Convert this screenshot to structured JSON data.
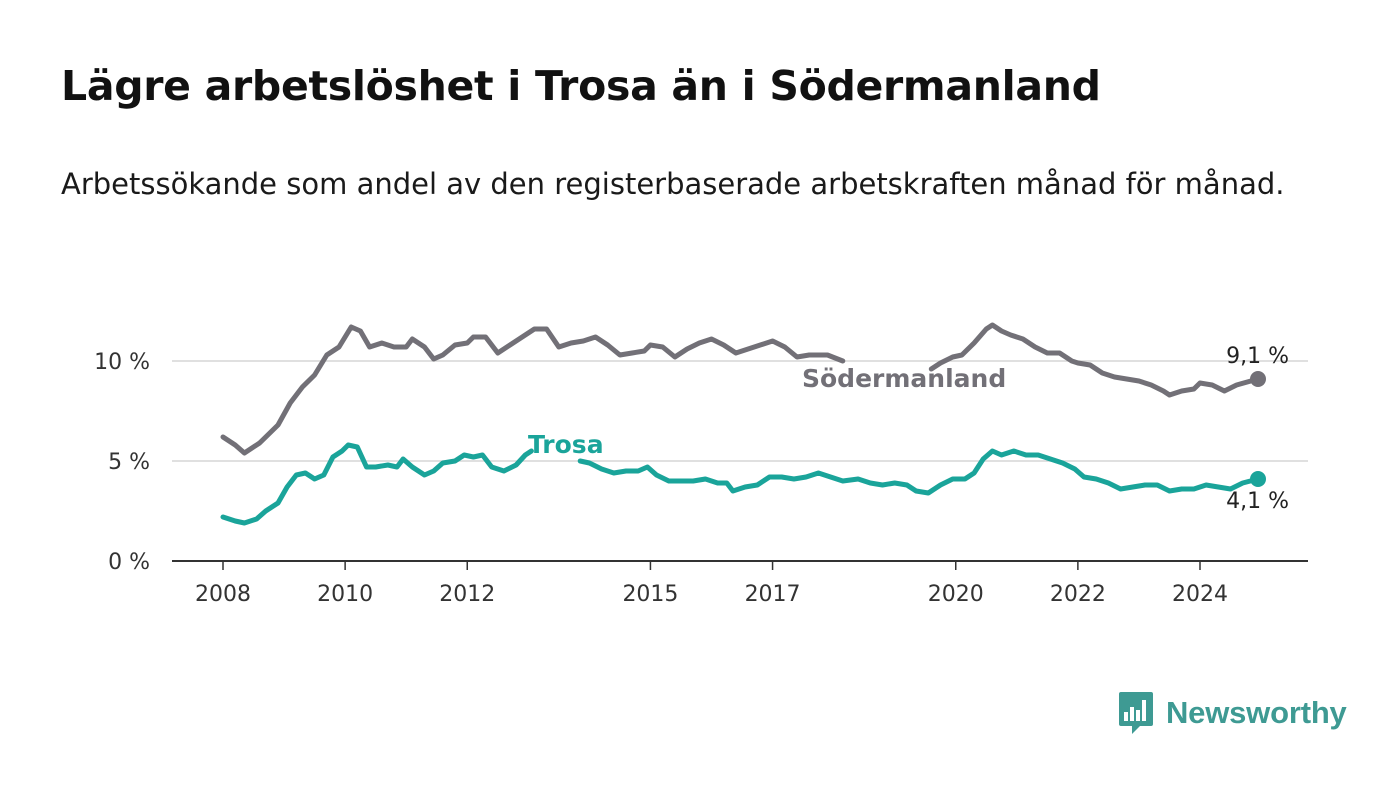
{
  "header": {
    "title": "Lägre arbetslöshet i Trosa än i Södermanland",
    "subtitle": "Arbetssökande som andel av den registerbaserade arbetskraften månad för månad."
  },
  "brand": {
    "name": "Newsworthy",
    "icon": "bar-chart-speech-bubble-icon",
    "color": "#3e9a93"
  },
  "chart_data": {
    "type": "line",
    "title": "Lägre arbetslöshet i Trosa än i Södermanland",
    "subtitle": "Arbetssökande som andel av den registerbaserade arbetskraften månad för månad.",
    "xlabel": "",
    "ylabel": "",
    "xlim": [
      2007.6,
      2025.5
    ],
    "ylim": [
      0,
      12
    ],
    "xticks": [
      2008,
      2010,
      2012,
      2015,
      2017,
      2020,
      2022,
      2024
    ],
    "xtick_labels": [
      "2008",
      "2010",
      "2012",
      "2015",
      "2017",
      "2020",
      "2022",
      "2024"
    ],
    "yticks": [
      0,
      5,
      10
    ],
    "ytick_labels": [
      "0 %",
      "5 %",
      "10 %"
    ],
    "grid": "horizontal",
    "legend": "none",
    "series": [
      {
        "name": "Södermanland",
        "color": "#727077",
        "end_label": "9,1 %",
        "points": [
          [
            2008.0,
            6.2
          ],
          [
            2008.2,
            5.8
          ],
          [
            2008.35,
            5.4
          ],
          [
            2008.6,
            5.9
          ],
          [
            2008.9,
            6.8
          ],
          [
            2009.1,
            7.9
          ],
          [
            2009.3,
            8.7
          ],
          [
            2009.5,
            9.3
          ],
          [
            2009.7,
            10.3
          ],
          [
            2009.9,
            10.7
          ],
          [
            2010.0,
            11.2
          ],
          [
            2010.1,
            11.7
          ],
          [
            2010.25,
            11.5
          ],
          [
            2010.4,
            10.7
          ],
          [
            2010.6,
            10.9
          ],
          [
            2010.8,
            10.7
          ],
          [
            2011.0,
            10.7
          ],
          [
            2011.1,
            11.1
          ],
          [
            2011.3,
            10.7
          ],
          [
            2011.45,
            10.1
          ],
          [
            2011.6,
            10.3
          ],
          [
            2011.8,
            10.8
          ],
          [
            2012.0,
            10.9
          ],
          [
            2012.1,
            11.2
          ],
          [
            2012.3,
            11.2
          ],
          [
            2012.5,
            10.4
          ],
          [
            2012.7,
            10.8
          ],
          [
            2012.9,
            11.2
          ],
          [
            2013.1,
            11.6
          ],
          [
            2013.3,
            11.6
          ],
          [
            2013.5,
            10.7
          ],
          [
            2013.7,
            10.9
          ],
          [
            2013.9,
            11.0
          ],
          [
            2014.1,
            11.2
          ],
          [
            2014.3,
            10.8
          ],
          [
            2014.5,
            10.3
          ],
          [
            2014.7,
            10.4
          ],
          [
            2014.9,
            10.5
          ],
          [
            2015.0,
            10.8
          ],
          [
            2015.2,
            10.7
          ],
          [
            2015.4,
            10.2
          ],
          [
            2015.6,
            10.6
          ],
          [
            2015.8,
            10.9
          ],
          [
            2016.0,
            11.1
          ],
          [
            2016.2,
            10.8
          ],
          [
            2016.4,
            10.4
          ],
          [
            2016.6,
            10.6
          ],
          [
            2016.8,
            10.8
          ],
          [
            2017.0,
            11.0
          ],
          [
            2017.2,
            10.7
          ],
          [
            2017.4,
            10.2
          ],
          [
            2017.6,
            10.3
          ],
          [
            2017.9,
            10.3
          ],
          [
            2018.15,
            10.0
          ]
        ],
        "points_segment2": [
          [
            2019.6,
            9.6
          ],
          [
            2019.75,
            9.9
          ],
          [
            2019.95,
            10.2
          ],
          [
            2020.1,
            10.3
          ],
          [
            2020.3,
            10.9
          ],
          [
            2020.5,
            11.6
          ],
          [
            2020.6,
            11.8
          ],
          [
            2020.75,
            11.5
          ],
          [
            2020.9,
            11.3
          ],
          [
            2021.1,
            11.1
          ],
          [
            2021.3,
            10.7
          ],
          [
            2021.5,
            10.4
          ],
          [
            2021.7,
            10.4
          ],
          [
            2021.9,
            10.0
          ],
          [
            2022.0,
            9.9
          ],
          [
            2022.2,
            9.8
          ],
          [
            2022.4,
            9.4
          ],
          [
            2022.6,
            9.2
          ],
          [
            2022.8,
            9.1
          ],
          [
            2023.0,
            9.0
          ],
          [
            2023.2,
            8.8
          ],
          [
            2023.4,
            8.5
          ],
          [
            2023.5,
            8.3
          ],
          [
            2023.7,
            8.5
          ],
          [
            2023.9,
            8.6
          ],
          [
            2024.0,
            8.9
          ],
          [
            2024.2,
            8.8
          ],
          [
            2024.4,
            8.5
          ],
          [
            2024.6,
            8.8
          ],
          [
            2024.95,
            9.1
          ]
        ]
      },
      {
        "name": "Trosa",
        "color": "#1aa49a",
        "end_label": "4,1 %",
        "points": [
          [
            2008.0,
            2.2
          ],
          [
            2008.2,
            2.0
          ],
          [
            2008.35,
            1.9
          ],
          [
            2008.55,
            2.1
          ],
          [
            2008.7,
            2.5
          ],
          [
            2008.9,
            2.9
          ],
          [
            2009.05,
            3.7
          ],
          [
            2009.2,
            4.3
          ],
          [
            2009.35,
            4.4
          ],
          [
            2009.5,
            4.1
          ],
          [
            2009.65,
            4.3
          ],
          [
            2009.8,
            5.2
          ],
          [
            2009.95,
            5.5
          ],
          [
            2010.05,
            5.8
          ],
          [
            2010.2,
            5.7
          ],
          [
            2010.35,
            4.7
          ],
          [
            2010.5,
            4.7
          ],
          [
            2010.7,
            4.8
          ],
          [
            2010.85,
            4.7
          ],
          [
            2010.95,
            5.1
          ],
          [
            2011.1,
            4.7
          ],
          [
            2011.3,
            4.3
          ],
          [
            2011.45,
            4.5
          ],
          [
            2011.6,
            4.9
          ],
          [
            2011.8,
            5.0
          ],
          [
            2011.95,
            5.3
          ],
          [
            2012.1,
            5.2
          ],
          [
            2012.25,
            5.3
          ],
          [
            2012.4,
            4.7
          ],
          [
            2012.6,
            4.5
          ],
          [
            2012.8,
            4.8
          ],
          [
            2012.95,
            5.3
          ],
          [
            2013.05,
            5.5
          ]
        ],
        "points_segment2": [
          [
            2013.85,
            5.0
          ],
          [
            2014.0,
            4.9
          ],
          [
            2014.2,
            4.6
          ],
          [
            2014.4,
            4.4
          ],
          [
            2014.6,
            4.5
          ],
          [
            2014.8,
            4.5
          ],
          [
            2014.95,
            4.7
          ],
          [
            2015.1,
            4.3
          ],
          [
            2015.3,
            4.0
          ],
          [
            2015.5,
            4.0
          ],
          [
            2015.7,
            4.0
          ],
          [
            2015.9,
            4.1
          ],
          [
            2016.1,
            3.9
          ],
          [
            2016.25,
            3.9
          ],
          [
            2016.35,
            3.5
          ],
          [
            2016.55,
            3.7
          ],
          [
            2016.75,
            3.8
          ],
          [
            2016.95,
            4.2
          ],
          [
            2017.15,
            4.2
          ],
          [
            2017.35,
            4.1
          ],
          [
            2017.55,
            4.2
          ],
          [
            2017.75,
            4.4
          ],
          [
            2017.95,
            4.2
          ],
          [
            2018.15,
            4.0
          ],
          [
            2018.4,
            4.1
          ],
          [
            2018.6,
            3.9
          ],
          [
            2018.8,
            3.8
          ],
          [
            2019.0,
            3.9
          ],
          [
            2019.2,
            3.8
          ],
          [
            2019.35,
            3.5
          ],
          [
            2019.55,
            3.4
          ],
          [
            2019.75,
            3.8
          ],
          [
            2019.95,
            4.1
          ],
          [
            2020.15,
            4.1
          ],
          [
            2020.3,
            4.4
          ],
          [
            2020.45,
            5.1
          ],
          [
            2020.6,
            5.5
          ],
          [
            2020.75,
            5.3
          ],
          [
            2020.95,
            5.5
          ],
          [
            2021.15,
            5.3
          ],
          [
            2021.35,
            5.3
          ],
          [
            2021.55,
            5.1
          ],
          [
            2021.75,
            4.9
          ],
          [
            2021.95,
            4.6
          ],
          [
            2022.1,
            4.2
          ],
          [
            2022.3,
            4.1
          ],
          [
            2022.5,
            3.9
          ],
          [
            2022.7,
            3.6
          ],
          [
            2022.9,
            3.7
          ],
          [
            2023.1,
            3.8
          ],
          [
            2023.3,
            3.8
          ],
          [
            2023.5,
            3.5
          ],
          [
            2023.7,
            3.6
          ],
          [
            2023.9,
            3.6
          ],
          [
            2024.1,
            3.8
          ],
          [
            2024.3,
            3.7
          ],
          [
            2024.5,
            3.6
          ],
          [
            2024.7,
            3.9
          ],
          [
            2024.95,
            4.1
          ]
        ]
      }
    ]
  }
}
